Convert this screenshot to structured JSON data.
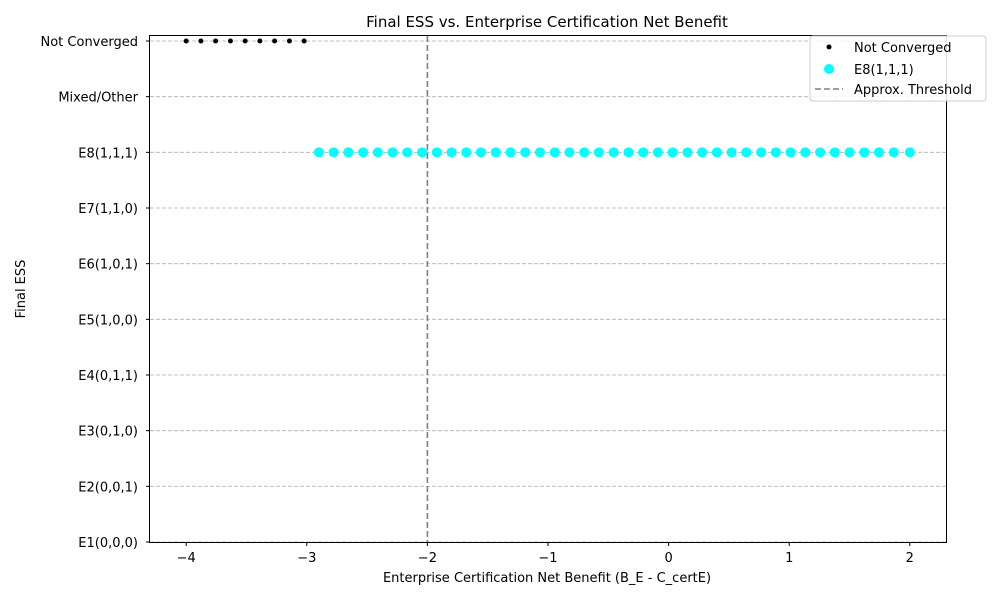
{
  "chart_data": {
    "type": "scatter",
    "title": "Final ESS vs. Enterprise Certification Net Benefit",
    "xlabel": "Enterprise Certification Net Benefit (B_E - C_certE)",
    "ylabel": "Final ESS",
    "xlim": [
      -4.3,
      2.3
    ],
    "x_ticks": [
      -4,
      -3,
      -2,
      -1,
      0,
      1,
      2
    ],
    "x_tick_labels": [
      "−4",
      "−3",
      "−2",
      "−1",
      "0",
      "1",
      "2"
    ],
    "y_categories": [
      "E1(0,0,0)",
      "E2(0,0,1)",
      "E3(0,1,0)",
      "E4(0,1,1)",
      "E5(1,0,0)",
      "E6(1,0,1)",
      "E7(1,1,0)",
      "E8(1,1,1)",
      "Mixed/Other",
      "Not Converged"
    ],
    "grid": "horizontal dashed",
    "legend_position": "top-right",
    "series": [
      {
        "name": "Not Converged",
        "color": "#000000",
        "marker_size": "small",
        "y": "Not Converged",
        "x": [
          -4.0,
          -3.878,
          -3.756,
          -3.633,
          -3.511,
          -3.389,
          -3.267,
          -3.144,
          -3.022
        ]
      },
      {
        "name": "E8(1,1,1)",
        "color": "#00FFFF",
        "marker_size": "large",
        "y": "E8(1,1,1)",
        "x": [
          -2.9,
          -2.778,
          -2.656,
          -2.533,
          -2.411,
          -2.289,
          -2.167,
          -2.044,
          -1.922,
          -1.8,
          -1.678,
          -1.556,
          -1.433,
          -1.311,
          -1.189,
          -1.067,
          -0.944,
          -0.822,
          -0.7,
          -0.578,
          -0.456,
          -0.333,
          -0.211,
          -0.089,
          0.033,
          0.156,
          0.278,
          0.4,
          0.522,
          0.644,
          0.767,
          0.889,
          1.011,
          1.133,
          1.256,
          1.378,
          1.5,
          1.622,
          1.744,
          1.867,
          2.0
        ]
      }
    ],
    "threshold": {
      "name": "Approx. Threshold",
      "x": -2,
      "color": "#808080",
      "style": "dashed"
    }
  }
}
